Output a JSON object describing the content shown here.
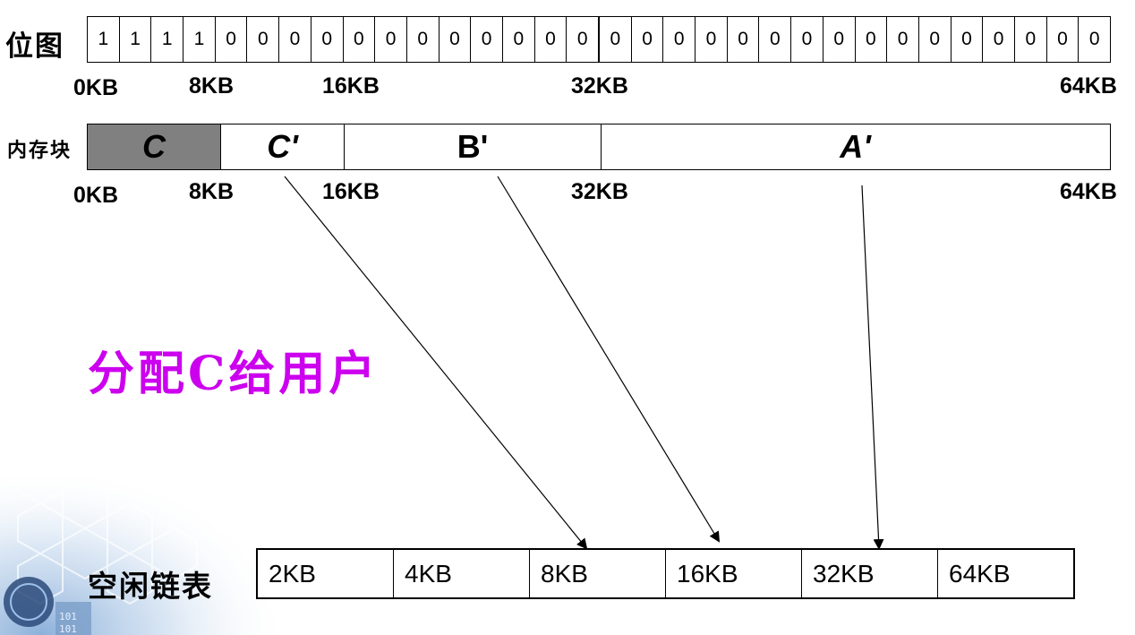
{
  "bitmap": {
    "label": "位图",
    "bits": [
      "1",
      "1",
      "1",
      "1",
      "0",
      "0",
      "0",
      "0",
      "0",
      "0",
      "0",
      "0",
      "0",
      "0",
      "0",
      "0",
      "0",
      "0",
      "0",
      "0",
      "0",
      "0",
      "0",
      "0",
      "0",
      "0",
      "0",
      "0",
      "0",
      "0",
      "0",
      "0"
    ],
    "ticks": [
      "0KB",
      "8KB",
      "16KB",
      "32KB",
      "64KB"
    ]
  },
  "memory": {
    "label": "内存块",
    "blocks": [
      {
        "name": "C",
        "color": "#808080"
      },
      {
        "name": "C'",
        "color": "#ffffff"
      },
      {
        "name": "B'",
        "color": "#ffffff"
      },
      {
        "name": "A'",
        "color": "#ffffff"
      }
    ],
    "ticks": [
      "0KB",
      "8KB",
      "16KB",
      "32KB",
      "64KB"
    ]
  },
  "note": "分配C给用户",
  "note_color": "#cc00ee",
  "freelist": {
    "label": "空闲链表",
    "cells": [
      "2KB",
      "4KB",
      "8KB",
      "16KB",
      "32KB",
      "64KB"
    ]
  }
}
